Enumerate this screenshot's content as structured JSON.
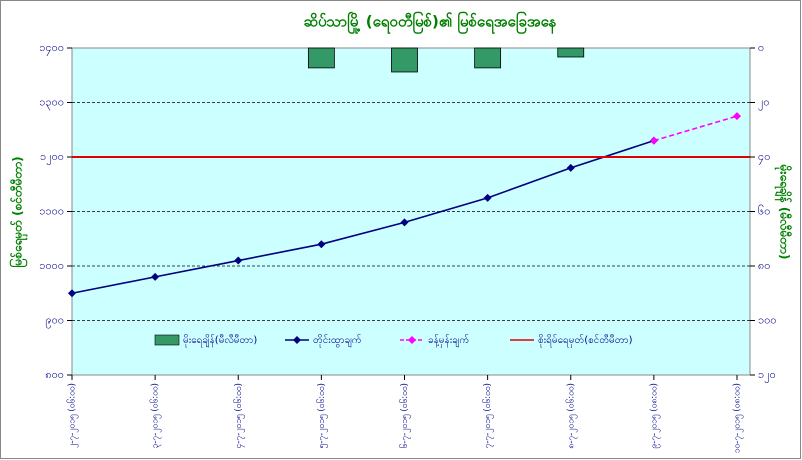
{
  "chart_data": {
    "type": "line",
    "title": "ဆိပ်သာမြို့ (ရေဝတီမြစ်)၏ မြစ်ရေအခြေအနေ",
    "y_label": "မြစ်ရေမှတ် (စင်တီမီတာ)",
    "y2_label": "မိုးရေချိန် (မီလီမီတာ)",
    "categories": [
      "၂-၇-၂၀၁၅ (၀၆:၀၀)",
      "၃-၇-၂၀၁၅ (၀၆:၀၀)",
      "၄-၇-၂၀၁၅ (၀၆:၀၀)",
      "၅-၇-၂၀၁၅ (၀၆:၀၀)",
      "၆-၇-၂၀၁၅ (၀၆:၀၀)",
      "၇-၇-၂၀၁၅ (၀၆:၀၀)",
      "၈-၇-၂၀၁၅ (၀၆:၀၀)",
      "၉-၇-၂၀၁၅ (၀၈:၀၀)",
      "၁၀-၇-၂၀၁၅ (၀၈:၀၀)"
    ],
    "series": [
      {
        "name": "မိုးရေချိန်(မီလီမီတာ)",
        "type": "bar",
        "axis": "y2",
        "color": "#339966",
        "values": [
          null,
          null,
          null,
          7.3,
          8.8,
          7.3,
          3.3,
          null,
          null
        ]
      },
      {
        "name": "တိုင်းထွာချက်",
        "type": "line",
        "color": "#000080",
        "values": [
          950,
          980,
          1010,
          1040,
          1080,
          1125,
          1180,
          1230,
          null
        ]
      },
      {
        "name": "ခန့်မှန်းချက်",
        "type": "line",
        "dashed": true,
        "color": "#ff00ff",
        "values": [
          null,
          null,
          null,
          null,
          null,
          null,
          null,
          1230,
          1275
        ]
      },
      {
        "name": "စိုးရိမ်ရေမှတ်(စင်တီမီတာ)",
        "type": "hline",
        "color": "#e00000",
        "value": 1200
      }
    ],
    "ylim": [
      800,
      1400
    ],
    "yticks": [
      {
        "value": 800,
        "label": "၈၀၀"
      },
      {
        "value": 900,
        "label": "၉၀၀"
      },
      {
        "value": 1000,
        "label": "၁၀၀၀"
      },
      {
        "value": 1100,
        "label": "၁၁၀၀"
      },
      {
        "value": 1200,
        "label": "၁၂၀၀"
      },
      {
        "value": 1300,
        "label": "၁၃၀၀"
      },
      {
        "value": 1400,
        "label": "၁၄၀၀"
      }
    ],
    "y2lim": [
      120,
      0
    ],
    "y2ticks": [
      {
        "value": 0,
        "label": "၀"
      },
      {
        "value": 20,
        "label": "၂၀"
      },
      {
        "value": 40,
        "label": "၄၀"
      },
      {
        "value": 60,
        "label": "၆၀"
      },
      {
        "value": 80,
        "label": "၈၀"
      },
      {
        "value": 100,
        "label": "၁၀၀"
      },
      {
        "value": 120,
        "label": "၁၂၀"
      }
    ],
    "grid": true
  }
}
